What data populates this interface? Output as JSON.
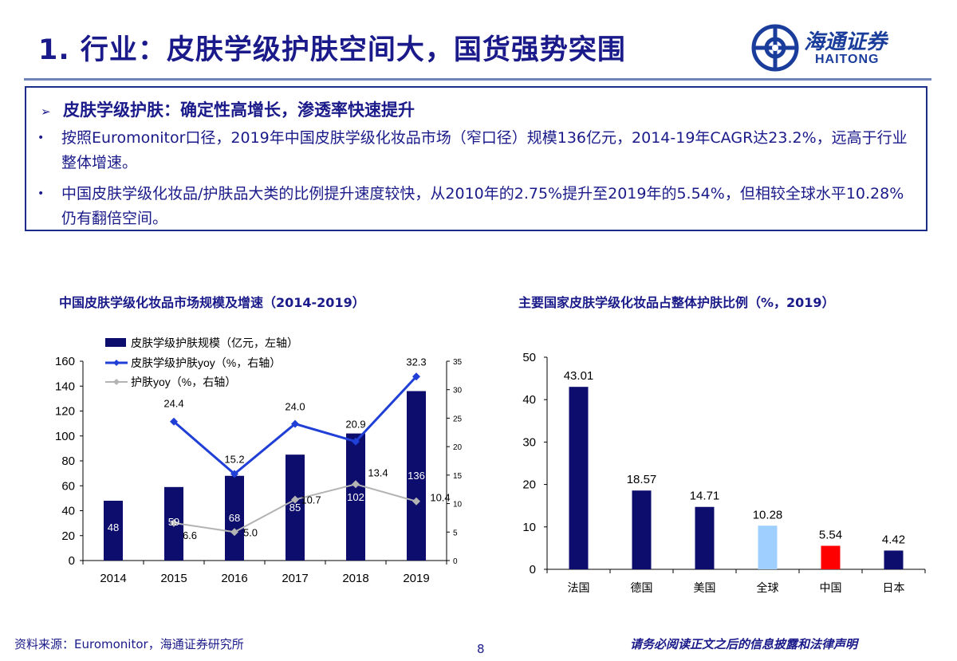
{
  "header": {
    "title": "1. 行业：皮肤学级护肤空间大，国货强势突围",
    "logo_cn": "海通证券",
    "logo_en": "HAITONG"
  },
  "summary": {
    "heading": "皮肤学级护肤：确定性高增长，渗透率快速提升",
    "bullets": [
      "按照Euromonitor口径，2019年中国皮肤学级化妆品市场（窄口径）规模136亿元，2014-19年CAGR达23.2%，远高于行业整体增速。",
      "中国皮肤学级化妆品/护肤品大类的比例提升速度较快，从2010年的2.75%提升至2019年的5.54%，但相较全球水平10.28%仍有翻倍空间。"
    ]
  },
  "colors": {
    "navy": "#0d0d6e",
    "blue_line": "#1f3fd6",
    "gray_line": "#b3b3b3",
    "light_blue": "#9fcfff",
    "red": "#ff0000"
  },
  "chart_data": [
    {
      "type": "bar",
      "title": "中国皮肤学级化妆品市场规模及增速（2014-2019）",
      "categories": [
        "2014",
        "2015",
        "2016",
        "2017",
        "2018",
        "2019"
      ],
      "ylim": [
        0,
        160
      ],
      "y_ticks": [
        0,
        20,
        40,
        60,
        80,
        100,
        120,
        140,
        160
      ],
      "y2lim": [
        0,
        35
      ],
      "y2_ticks": [
        0,
        5,
        10,
        15,
        20,
        25,
        30,
        35
      ],
      "series": [
        {
          "name": "皮肤学级护肤规模（亿元，左轴）",
          "kind": "bar",
          "axis": "left",
          "values": [
            48,
            59,
            68,
            85,
            102,
            136
          ],
          "labels": [
            "48",
            "59",
            "68",
            "85",
            "102",
            "136"
          ]
        },
        {
          "name": "皮肤学级护肤yoy（%，右轴）",
          "kind": "line",
          "axis": "right",
          "values": [
            null,
            24.4,
            15.2,
            24.0,
            20.9,
            32.3
          ],
          "labels": [
            "",
            "24.4",
            "15.2",
            "24.0",
            "20.9",
            "32.3"
          ]
        },
        {
          "name": "护肤yoy（%，右轴）",
          "kind": "line",
          "axis": "right",
          "values": [
            null,
            6.6,
            5.0,
            10.7,
            13.4,
            10.4
          ],
          "labels": [
            "",
            "6.6",
            "5.0",
            "10.7",
            "13.4",
            "10.4"
          ]
        }
      ],
      "legend_position": "top-left"
    },
    {
      "type": "bar",
      "title": "主要国家皮肤学级化妆品占整体护肤比例（%，2019）",
      "categories": [
        "法国",
        "德国",
        "美国",
        "全球",
        "中国",
        "日本"
      ],
      "values": [
        43.01,
        18.57,
        14.71,
        10.28,
        5.54,
        4.42
      ],
      "labels": [
        "43.01",
        "18.57",
        "14.71",
        "10.28",
        "5.54",
        "4.42"
      ],
      "bar_colors": [
        "#0d0d6e",
        "#0d0d6e",
        "#0d0d6e",
        "#9fcfff",
        "#ff0000",
        "#0d0d6e"
      ],
      "ylim": [
        0,
        50
      ],
      "y_ticks": [
        0,
        10,
        20,
        30,
        40,
        50
      ]
    }
  ],
  "footer": {
    "source": "资料来源：Euromonitor，海通证券研究所",
    "page": "8",
    "disclaimer": "请务必阅读正文之后的信息披露和法律声明"
  }
}
